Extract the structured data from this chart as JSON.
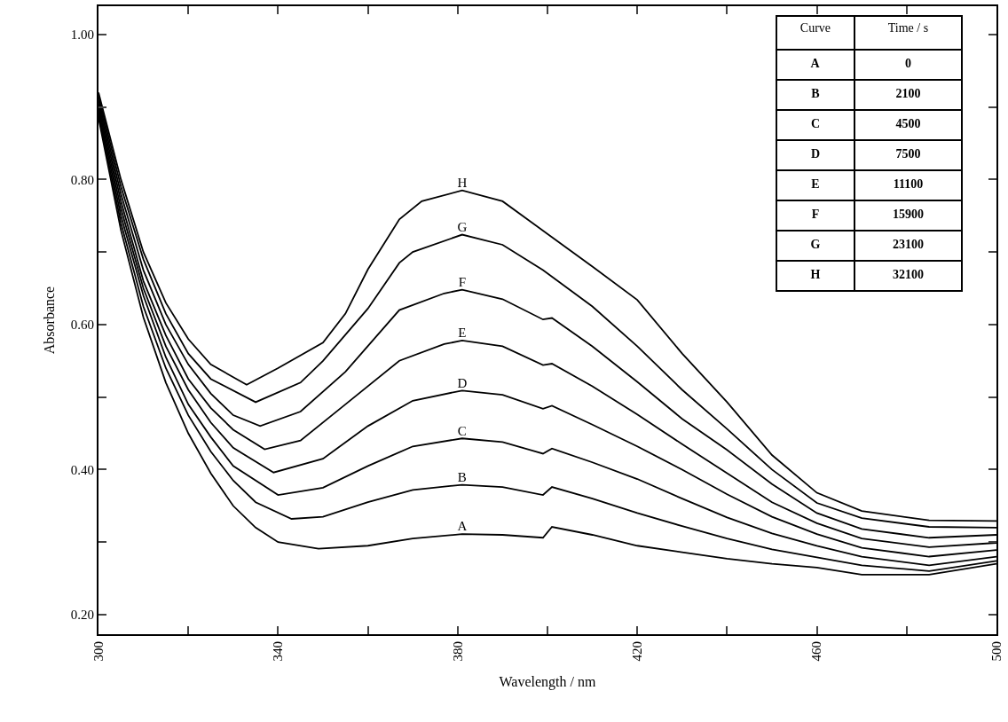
{
  "chart_data": {
    "type": "line",
    "xlabel": "Wavelength / nm",
    "ylabel": "Absorbance",
    "xlim": [
      300,
      500
    ],
    "ylim": [
      0.173,
      1.039
    ],
    "xticks": [
      300,
      {
        "value": 320,
        "label": null
      },
      340,
      {
        "value": 360,
        "label": null
      },
      380,
      {
        "value": 400,
        "label": null
      },
      420,
      {
        "value": 440,
        "label": null
      },
      460,
      {
        "value": 480,
        "label": null
      },
      500
    ],
    "yticks": [
      {
        "value": 0.2,
        "label": "0.20"
      },
      {
        "value": 0.3,
        "label": null
      },
      {
        "value": 0.4,
        "label": "0.40"
      },
      {
        "value": 0.5,
        "label": null
      },
      {
        "value": 0.6,
        "label": "0.60"
      },
      {
        "value": 0.7,
        "label": null
      },
      {
        "value": 0.8,
        "label": "0.80"
      },
      {
        "value": 0.9,
        "label": null
      },
      {
        "value": 1.0,
        "label": "1.00"
      }
    ],
    "legend": false,
    "marker": "none",
    "line_style": "solid",
    "series": [
      {
        "name": "A",
        "color": "#000000",
        "x": [
          300,
          305,
          310,
          315,
          320,
          325,
          330,
          335,
          340,
          349,
          360,
          370,
          381,
          390,
          399,
          401,
          410,
          420,
          430,
          440,
          450,
          460,
          470,
          485,
          500
        ],
        "values": [
          0.885,
          0.73,
          0.61,
          0.52,
          0.45,
          0.395,
          0.35,
          0.32,
          0.3,
          0.291,
          0.295,
          0.305,
          0.311,
          0.31,
          0.306,
          0.321,
          0.31,
          0.295,
          0.286,
          0.277,
          0.27,
          0.265,
          0.255,
          0.255,
          0.27
        ]
      },
      {
        "name": "B",
        "color": "#000000",
        "x": [
          300,
          305,
          310,
          315,
          320,
          325,
          330,
          335,
          343,
          350,
          360,
          370,
          381,
          390,
          399,
          401,
          410,
          420,
          430,
          440,
          450,
          460,
          470,
          485,
          500
        ],
        "values": [
          0.89,
          0.74,
          0.625,
          0.54,
          0.475,
          0.425,
          0.385,
          0.355,
          0.332,
          0.335,
          0.355,
          0.372,
          0.379,
          0.376,
          0.365,
          0.376,
          0.36,
          0.34,
          0.322,
          0.305,
          0.29,
          0.279,
          0.268,
          0.26,
          0.274
        ]
      },
      {
        "name": "C",
        "color": "#000000",
        "x": [
          300,
          305,
          310,
          315,
          320,
          325,
          330,
          340,
          350,
          360,
          370,
          381,
          390,
          399,
          401,
          410,
          420,
          430,
          440,
          450,
          460,
          470,
          485,
          500
        ],
        "values": [
          0.895,
          0.75,
          0.64,
          0.555,
          0.49,
          0.445,
          0.405,
          0.365,
          0.375,
          0.405,
          0.432,
          0.443,
          0.438,
          0.422,
          0.429,
          0.41,
          0.387,
          0.36,
          0.334,
          0.312,
          0.295,
          0.28,
          0.268,
          0.28
        ]
      },
      {
        "name": "D",
        "color": "#000000",
        "x": [
          300,
          305,
          310,
          315,
          320,
          325,
          330,
          339,
          350,
          360,
          370,
          381,
          390,
          399,
          401,
          410,
          420,
          430,
          440,
          450,
          460,
          470,
          485,
          500
        ],
        "values": [
          0.9,
          0.76,
          0.65,
          0.57,
          0.51,
          0.465,
          0.43,
          0.396,
          0.415,
          0.46,
          0.495,
          0.509,
          0.503,
          0.484,
          0.488,
          0.462,
          0.432,
          0.4,
          0.366,
          0.335,
          0.311,
          0.292,
          0.28,
          0.289
        ]
      },
      {
        "name": "E",
        "color": "#000000",
        "x": [
          300,
          305,
          310,
          315,
          320,
          325,
          330,
          337,
          345,
          355,
          367,
          377,
          381,
          390,
          399,
          401,
          410,
          420,
          430,
          440,
          450,
          460,
          470,
          485,
          500
        ],
        "values": [
          0.905,
          0.77,
          0.66,
          0.585,
          0.525,
          0.485,
          0.455,
          0.428,
          0.44,
          0.49,
          0.55,
          0.573,
          0.578,
          0.57,
          0.544,
          0.546,
          0.515,
          0.476,
          0.435,
          0.395,
          0.355,
          0.326,
          0.305,
          0.293,
          0.299
        ]
      },
      {
        "name": "F",
        "color": "#000000",
        "x": [
          300,
          305,
          310,
          315,
          320,
          325,
          330,
          336,
          345,
          355,
          367,
          377,
          381,
          390,
          399,
          401,
          410,
          420,
          430,
          440,
          450,
          460,
          470,
          485,
          500
        ],
        "values": [
          0.91,
          0.78,
          0.675,
          0.6,
          0.545,
          0.505,
          0.475,
          0.46,
          0.48,
          0.535,
          0.62,
          0.643,
          0.648,
          0.635,
          0.607,
          0.609,
          0.57,
          0.521,
          0.47,
          0.427,
          0.38,
          0.34,
          0.318,
          0.306,
          0.31
        ]
      },
      {
        "name": "G",
        "color": "#000000",
        "x": [
          300,
          305,
          310,
          315,
          320,
          325,
          335,
          345,
          350,
          360,
          367,
          370,
          381,
          390,
          399,
          410,
          420,
          430,
          440,
          450,
          460,
          470,
          485,
          500
        ],
        "values": [
          0.915,
          0.79,
          0.69,
          0.615,
          0.56,
          0.525,
          0.493,
          0.52,
          0.55,
          0.622,
          0.685,
          0.7,
          0.724,
          0.71,
          0.675,
          0.625,
          0.57,
          0.51,
          0.456,
          0.4,
          0.354,
          0.333,
          0.321,
          0.32
        ]
      },
      {
        "name": "H",
        "color": "#000000",
        "x": [
          300,
          305,
          310,
          315,
          320,
          325,
          333,
          340,
          350,
          355,
          360,
          367,
          372,
          381,
          390,
          400,
          410,
          420,
          430,
          440,
          450,
          460,
          470,
          485,
          500
        ],
        "values": [
          0.92,
          0.8,
          0.7,
          0.63,
          0.58,
          0.545,
          0.517,
          0.54,
          0.575,
          0.615,
          0.676,
          0.745,
          0.77,
          0.785,
          0.77,
          0.725,
          0.68,
          0.634,
          0.56,
          0.493,
          0.42,
          0.368,
          0.343,
          0.33,
          0.329
        ]
      }
    ],
    "annotations": [
      "Curve",
      "Time / s",
      "A",
      "0",
      "B",
      "2100",
      "C",
      "4500",
      "D",
      "7500",
      "E",
      "11100",
      "F",
      "15900",
      "G",
      "23100",
      "H",
      "32100"
    ]
  }
}
